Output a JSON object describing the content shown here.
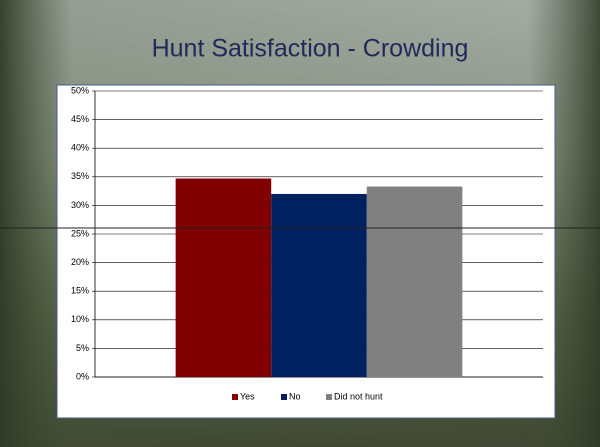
{
  "chart_data": {
    "type": "bar",
    "title": "Hunt Satisfaction - Crowding",
    "categories": [
      null
    ],
    "series": [
      {
        "name": "Yes",
        "color": "#800000",
        "values": [
          34.7
        ]
      },
      {
        "name": "No",
        "color": "#002060",
        "values": [
          32
        ]
      },
      {
        "name": "Did not hunt",
        "color": "#808080",
        "values": [
          33.3
        ]
      }
    ],
    "ylim": [
      0,
      50
    ],
    "yticks": [
      {
        "value": 0,
        "label": "0%"
      },
      {
        "value": 5,
        "label": "5%"
      },
      {
        "value": 10,
        "label": "10%"
      },
      {
        "value": 15,
        "label": "15%"
      },
      {
        "value": 20,
        "label": "20%"
      },
      {
        "value": 25,
        "label": "25%"
      },
      {
        "value": 30,
        "label": "30%"
      },
      {
        "value": 35,
        "label": "35%"
      },
      {
        "value": 40,
        "label": "40%"
      },
      {
        "value": 45,
        "label": "45%"
      },
      {
        "value": 50,
        "label": "50%"
      }
    ],
    "grid": true,
    "legend": "bottom"
  }
}
